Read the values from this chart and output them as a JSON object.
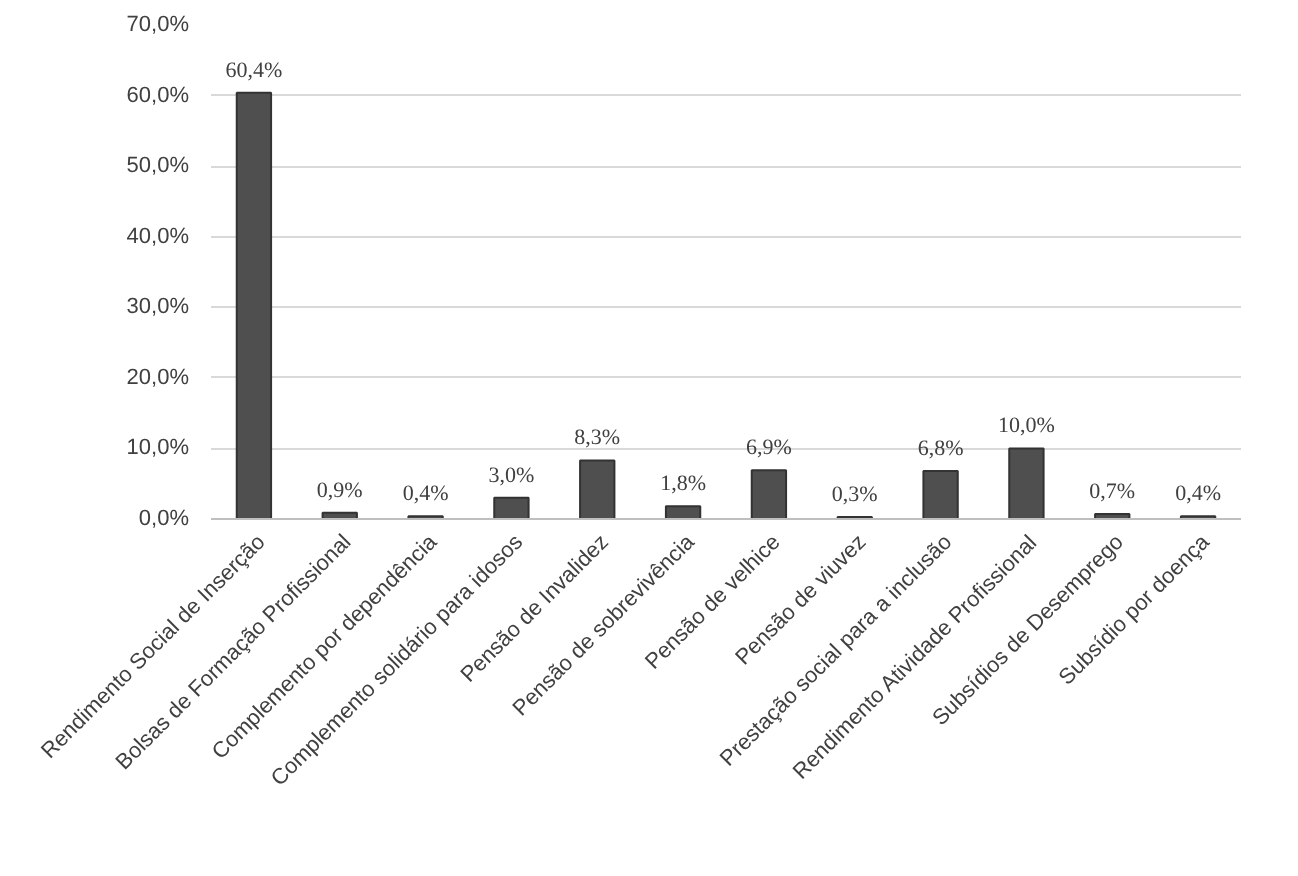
{
  "chart_data": {
    "type": "bar",
    "categories": [
      "Rendimento Social de Inserção",
      "Bolsas de Formação Profissional",
      "Complemento por dependência",
      "Complemento solidário para idosos",
      "Pensão de Invalidez",
      "Pensão de sobrevivência",
      "Pensão de velhice",
      "Pensão de viuvez",
      "Prestação social para a inclusão",
      "Rendimento Atividade Profissional",
      "Subsídios de Desemprego",
      "Subsídio por doença"
    ],
    "values": [
      60.4,
      0.9,
      0.4,
      3.0,
      8.3,
      1.8,
      6.9,
      0.3,
      6.8,
      10.0,
      0.7,
      0.4
    ],
    "value_labels": [
      "60,4%",
      "0,9%",
      "0,4%",
      "3,0%",
      "8,3%",
      "1,8%",
      "6,9%",
      "0,3%",
      "6,8%",
      "10,0%",
      "0,7%",
      "0,4%"
    ],
    "color": "#4f4f4f",
    "ylim": [
      0,
      70
    ],
    "yticks": [
      {
        "value": 0,
        "label": "0,0%"
      },
      {
        "value": 10,
        "label": "10,0%"
      },
      {
        "value": 20,
        "label": "20,0%"
      },
      {
        "value": 30,
        "label": "30,0%"
      },
      {
        "value": 40,
        "label": "40,0%"
      },
      {
        "value": 50,
        "label": "50,0%"
      },
      {
        "value": 60,
        "label": "60,0%"
      },
      {
        "value": 70,
        "label": "70,0%"
      }
    ],
    "grid": "y"
  }
}
